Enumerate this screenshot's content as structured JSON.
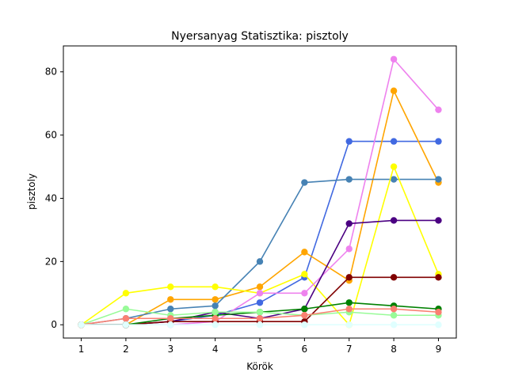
{
  "chart_data": {
    "type": "line",
    "title": "Nyersanyag Statisztika: pisztoly",
    "xlabel": "Körök",
    "ylabel": "pisztoly",
    "x": [
      1,
      2,
      3,
      4,
      5,
      6,
      7,
      8,
      9
    ],
    "xlim": [
      0.6,
      9.4
    ],
    "ylim": [
      -4.2,
      88.2
    ],
    "xticks": [
      1,
      2,
      3,
      4,
      5,
      6,
      7,
      8,
      9
    ],
    "yticks": [
      0,
      20,
      40,
      60,
      80
    ],
    "grid": false,
    "legend": "none",
    "series": [
      {
        "color": "#4169e1",
        "values": [
          0,
          0,
          1,
          3,
          7,
          15,
          58,
          58,
          58
        ]
      },
      {
        "color": "#ffa500",
        "values": [
          0,
          0,
          8,
          8,
          12,
          23,
          14,
          74,
          45
        ]
      },
      {
        "color": "#4682b4",
        "values": [
          0,
          2,
          5,
          6,
          20,
          45,
          46,
          46,
          46
        ]
      },
      {
        "color": "#ffff00",
        "values": [
          0,
          10,
          12,
          12,
          10,
          16,
          0,
          50,
          16
        ]
      },
      {
        "color": "#ee82ee",
        "values": [
          0,
          0,
          0,
          1,
          10,
          10,
          24,
          84,
          68
        ]
      },
      {
        "color": "#4b0082",
        "values": [
          0,
          0,
          1,
          4,
          2,
          5,
          32,
          33,
          33
        ]
      },
      {
        "color": "#800000",
        "values": [
          0,
          0,
          1,
          1,
          1,
          1,
          15,
          15,
          15
        ]
      },
      {
        "color": "#008000",
        "values": [
          0,
          0,
          2,
          3,
          4,
          5,
          7,
          6,
          5
        ]
      },
      {
        "color": "#98fb98",
        "values": [
          0,
          5,
          3,
          4,
          4,
          3,
          4,
          3,
          3
        ]
      },
      {
        "color": "#fa8072",
        "values": [
          0,
          2,
          2,
          2,
          2,
          3,
          5,
          5,
          4
        ]
      },
      {
        "color": "#e0ffff",
        "values": [
          0,
          0,
          0,
          0,
          0,
          0,
          0,
          0,
          0
        ]
      }
    ]
  }
}
